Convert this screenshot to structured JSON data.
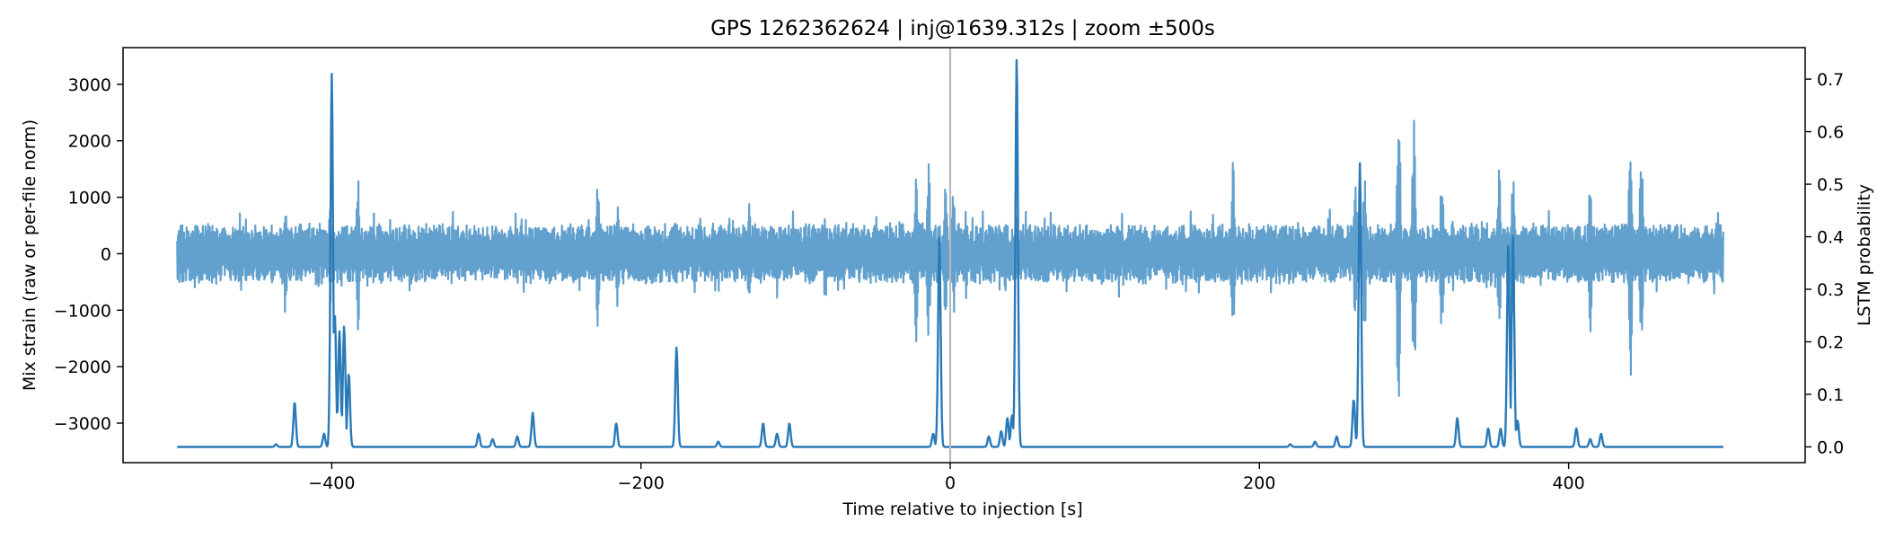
{
  "chart_data": {
    "type": "line",
    "title": "GPS 1262362624 | inj@1639.312s | zoom ±500s",
    "xlabel": "Time relative to injection [s]",
    "ylabel_left": "Mix strain (raw or per-file norm)",
    "ylabel_right": "LSTM probability",
    "xlim": [
      -535,
      553
    ],
    "ylim_left": [
      -3700,
      3650
    ],
    "ylim_right": [
      -0.03,
      0.76
    ],
    "x_ticks": [
      -400,
      -200,
      0,
      200,
      400
    ],
    "x_tick_labels": [
      "−400",
      "−200",
      "0",
      "200",
      "400"
    ],
    "y_left_ticks": [
      -3000,
      -2000,
      -1000,
      0,
      1000,
      2000,
      3000
    ],
    "y_left_tick_labels": [
      "−3000",
      "−2000",
      "−1000",
      "0",
      "1000",
      "2000",
      "3000"
    ],
    "y_right_ticks": [
      0.0,
      0.1,
      0.2,
      0.3,
      0.4,
      0.5,
      0.6,
      0.7
    ],
    "y_right_tick_labels": [
      "0.0",
      "0.1",
      "0.2",
      "0.3",
      "0.4",
      "0.5",
      "0.6",
      "0.7"
    ],
    "grid": false,
    "injection_marker_x": 0,
    "colors": {
      "strain": "#62a0cd",
      "probability": "#2a7ab8",
      "marker": "#b7b7b7"
    },
    "series": [
      {
        "axis": "left",
        "x_range": [
          -500,
          500
        ],
        "baseline_amplitude": 420,
        "bursts": [
          {
            "x": -430,
            "amplitude": 1150
          },
          {
            "x": -401,
            "amplitude": 900
          },
          {
            "x": -383,
            "amplitude": 1400
          },
          {
            "x": -228,
            "amplitude": 1450
          },
          {
            "x": -215,
            "amplitude": 1000
          },
          {
            "x": -130,
            "amplitude": 900
          },
          {
            "x": -22,
            "amplitude": 1650
          },
          {
            "x": -14,
            "amplitude": 1600
          },
          {
            "x": -3,
            "amplitude": 1300
          },
          {
            "x": 2,
            "amplitude": 1200
          },
          {
            "x": 36,
            "amplitude": 800
          },
          {
            "x": 183,
            "amplitude": 1900
          },
          {
            "x": 262,
            "amplitude": 1200
          },
          {
            "x": 268,
            "amplitude": 1550
          },
          {
            "x": 290,
            "amplitude": 3350
          },
          {
            "x": 300,
            "amplitude": 2900
          },
          {
            "x": 318,
            "amplitude": 1600
          },
          {
            "x": 355,
            "amplitude": 1650
          },
          {
            "x": 364,
            "amplitude": 1700
          },
          {
            "x": 414,
            "amplitude": 1400
          },
          {
            "x": 440,
            "amplitude": 2300
          },
          {
            "x": 447,
            "amplitude": 1900
          }
        ]
      },
      {
        "name": "LSTM probability",
        "axis": "right",
        "baseline": 0.0,
        "peaks": [
          {
            "x": -436,
            "value": 0.005
          },
          {
            "x": -424,
            "value": 0.085
          },
          {
            "x": -405,
            "value": 0.025
          },
          {
            "x": -400,
            "value": 0.71
          },
          {
            "x": -398,
            "value": 0.25
          },
          {
            "x": -395,
            "value": 0.22
          },
          {
            "x": -392,
            "value": 0.23
          },
          {
            "x": -389,
            "value": 0.14
          },
          {
            "x": -305,
            "value": 0.025
          },
          {
            "x": -296,
            "value": 0.015
          },
          {
            "x": -280,
            "value": 0.02
          },
          {
            "x": -270,
            "value": 0.065
          },
          {
            "x": -216,
            "value": 0.045
          },
          {
            "x": -177,
            "value": 0.19
          },
          {
            "x": -150,
            "value": 0.01
          },
          {
            "x": -121,
            "value": 0.045
          },
          {
            "x": -112,
            "value": 0.025
          },
          {
            "x": -104,
            "value": 0.045
          },
          {
            "x": -11,
            "value": 0.025
          },
          {
            "x": -7,
            "value": 0.4
          },
          {
            "x": 25,
            "value": 0.02
          },
          {
            "x": 33,
            "value": 0.03
          },
          {
            "x": 37,
            "value": 0.055
          },
          {
            "x": 40,
            "value": 0.06
          },
          {
            "x": 43,
            "value": 0.74
          },
          {
            "x": 220,
            "value": 0.005
          },
          {
            "x": 236,
            "value": 0.01
          },
          {
            "x": 250,
            "value": 0.02
          },
          {
            "x": 261,
            "value": 0.09
          },
          {
            "x": 265,
            "value": 0.54
          },
          {
            "x": 328,
            "value": 0.055
          },
          {
            "x": 348,
            "value": 0.035
          },
          {
            "x": 356,
            "value": 0.035
          },
          {
            "x": 361,
            "value": 0.39
          },
          {
            "x": 364,
            "value": 0.41
          },
          {
            "x": 367,
            "value": 0.05
          },
          {
            "x": 405,
            "value": 0.035
          },
          {
            "x": 414,
            "value": 0.015
          },
          {
            "x": 421,
            "value": 0.025
          }
        ]
      }
    ]
  }
}
